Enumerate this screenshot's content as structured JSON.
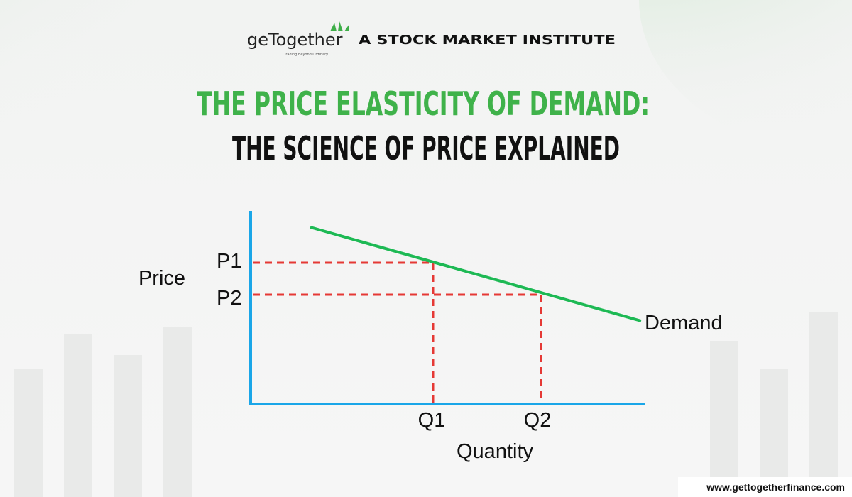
{
  "header": {
    "brand": "geTogether",
    "tagline": "Trading Beyond Ordinary",
    "partner": "A STOCK MARKET INSTITUTE"
  },
  "title": {
    "line1": "THE PRICE ELASTICITY OF DEMAND:",
    "line2": "THE SCIENCE OF PRICE EXPLAINED"
  },
  "diagram": {
    "y_axis_label": "Price",
    "x_axis_label": "Quantity",
    "curve_label": "Demand",
    "price_levels": [
      "P1",
      "P2"
    ],
    "quantity_levels": [
      "Q1",
      "Q2"
    ]
  },
  "footer": {
    "url": "www.gettogetherfinance.com"
  }
}
